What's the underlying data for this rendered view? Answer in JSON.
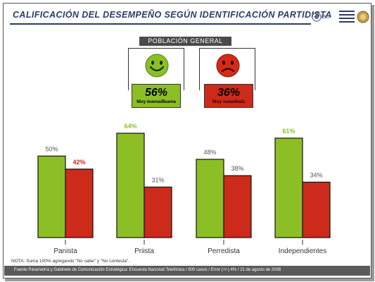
{
  "title": "CALIFICACIÓN DEL DESEMPEÑO SEGÚN IDENTIFICACIÓN PARTIDISTA",
  "population_label": "POBLACIÓN GENERAL",
  "summary": {
    "good": {
      "value": "56%",
      "label": "Muy buena/Buena",
      "face": "happy-face-icon"
    },
    "bad": {
      "value": "36%",
      "label": "Muy mala/Mala",
      "face": "sad-face-icon"
    }
  },
  "colors": {
    "green": "#8cbf26",
    "red": "#cc2a1a",
    "navy": "#2b3c66"
  },
  "chart_data": {
    "type": "bar",
    "categories": [
      "Panista",
      "Priista",
      "Perredista",
      "Independientes"
    ],
    "series": [
      {
        "values": [
          50,
          64,
          48,
          61
        ],
        "labels": [
          "50%",
          "64%",
          "48%",
          "61%"
        ],
        "color": "#8cbf26"
      },
      {
        "values": [
          42,
          31,
          38,
          34
        ],
        "labels": [
          "42%",
          "31%",
          "38%",
          "34%"
        ],
        "color": "#cc2a1a"
      }
    ],
    "label_colors": [
      [
        "#555555",
        "#8cbf26",
        "#555555",
        "#8cbf26"
      ],
      [
        "#cc2a1a",
        "#555555",
        "#555555",
        "#555555"
      ]
    ],
    "ylim": [
      0,
      70
    ],
    "grid": false
  },
  "note": "NOTA: Suma 100% agregando \"No sabe\" y \"No contesta\".",
  "footer": "Fuente Parametría y Gabinete de Comunicación Estratégica: Encuesta Nacional Telefónica / 600 casos / Error (+/-) 4% / 21 de agosto de 2008"
}
